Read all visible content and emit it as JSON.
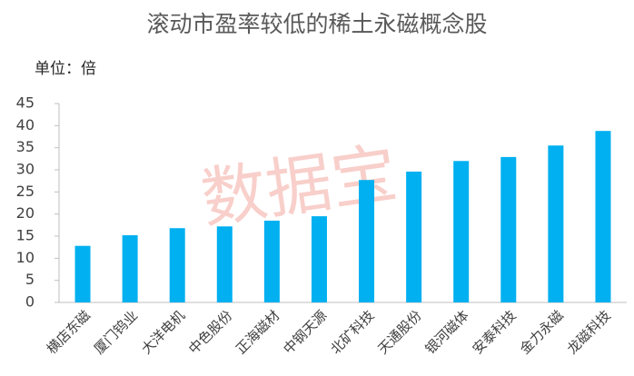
{
  "chart_data": {
    "type": "bar",
    "title": "滚动市盈率较低的稀土永磁概念股",
    "unit_label": "单位：倍",
    "watermark": "数据宝",
    "categories": [
      "横店东磁",
      "厦门钨业",
      "大洋电机",
      "中色股份",
      "正海磁材",
      "中钢天源",
      "北矿科技",
      "天通股份",
      "银河磁体",
      "安泰科技",
      "金力永磁",
      "龙磁科技"
    ],
    "values": [
      12.8,
      15.2,
      16.8,
      17.2,
      18.5,
      19.5,
      27.7,
      29.6,
      32.0,
      32.9,
      35.5,
      38.8
    ],
    "color": "#00b0f0",
    "ylim": [
      0,
      45
    ],
    "yticks": [
      0,
      5,
      10,
      15,
      20,
      25,
      30,
      35,
      40,
      45
    ],
    "grid": false
  }
}
